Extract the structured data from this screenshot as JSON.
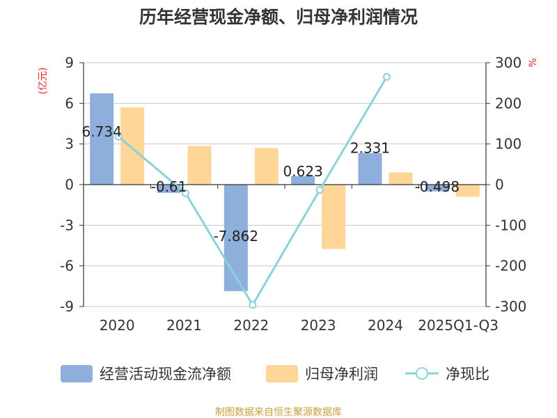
{
  "colors": {
    "operating_cash": "#8eaedc",
    "net_profit": "#fdd698",
    "ratio_line": "#89d3d9",
    "unit_label": "#e0282a",
    "source_text": "#c8a040"
  },
  "chart_data": {
    "type": "bar",
    "title": "历年经营现金净额、归母净利润情况",
    "categories": [
      "2020",
      "2021",
      "2022",
      "2023",
      "2024",
      "2025Q1-Q3"
    ],
    "y_left": {
      "unit": "(亿元)",
      "ticks": [
        "9",
        "6",
        "3",
        "0",
        "-3",
        "-6",
        "-9"
      ],
      "range": [
        -9,
        9
      ]
    },
    "y_right": {
      "unit": "%",
      "ticks": [
        "300",
        "200",
        "100",
        "0",
        "-100",
        "-200",
        "-300"
      ],
      "range": [
        -300,
        300
      ]
    },
    "series": [
      {
        "name": "经营活动现金流净额",
        "axis": "left",
        "type": "bar",
        "values": [
          6.734,
          -0.61,
          -7.862,
          0.623,
          2.331,
          -0.498
        ],
        "labels": [
          "6.734",
          "-0.61",
          "-7.862",
          "0.623",
          "2.331",
          "-0.498"
        ]
      },
      {
        "name": "归母净利润",
        "axis": "left",
        "type": "bar",
        "values": [
          5.7,
          2.85,
          2.7,
          -4.75,
          0.9,
          -0.9
        ]
      },
      {
        "name": "净现比",
        "axis": "right",
        "type": "line",
        "values": [
          118,
          -21,
          -296,
          -13,
          265,
          null
        ]
      }
    ],
    "grid": true,
    "legend_position": "bottom"
  },
  "footer": {
    "source": "制图数据来自恒生聚源数据库"
  }
}
